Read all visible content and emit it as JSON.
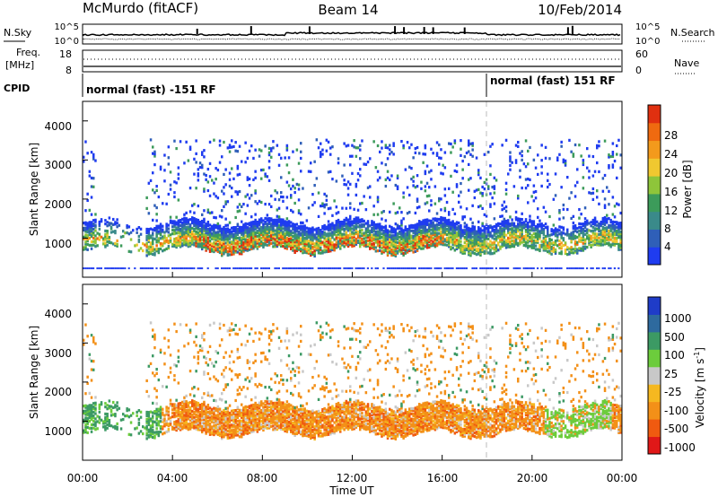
{
  "header": {
    "station": "McMurdo (fitACF)",
    "beam": "Beam 14",
    "date": "10/Feb/2014"
  },
  "panel_labels": {
    "nsky": "N.Sky",
    "nsearch": "N.Search",
    "freq_line1": "Freq.",
    "freq_line2": "[MHz]",
    "nave": "Nave",
    "cpid": "CPID"
  },
  "noise_axis": {
    "left_top": "10^5",
    "left_bottom": "10^0",
    "right_top": "10^5",
    "right_bottom": "10^0"
  },
  "freq_axis": {
    "left_top": "18",
    "left_bottom": "8",
    "right_top": "60",
    "right_bottom": "0"
  },
  "cpid": {
    "mode1": "normal (fast) -151 RF",
    "mode2": "normal (fast) 151 RF",
    "switch_hour": 18.0
  },
  "colors": {
    "power": [
      "#1f3cf0",
      "#2f5fb8",
      "#3a8a8a",
      "#3c9b5a",
      "#8ec53a",
      "#f0c830",
      "#f39a1c",
      "#ef6a10",
      "#e03010"
    ],
    "velocity": [
      "#e01818",
      "#f05a10",
      "#f39018",
      "#f5b820",
      "#c8c8c8",
      "#6ccc3c",
      "#3c9a64",
      "#2e6a9e",
      "#1f3cc8"
    ],
    "background_noise": "#1f3cf0"
  },
  "chart_data": [
    {
      "type": "heatmap",
      "name": "power",
      "xlabel": "Time UT",
      "ylabel": "Slant Range [km]",
      "x_ticks": [
        "00:00",
        "04:00",
        "08:00",
        "12:00",
        "16:00",
        "20:00",
        "00:00"
      ],
      "x_range_hours": [
        0,
        24
      ],
      "y_ticks": [
        "1000",
        "2000",
        "3000",
        "4000"
      ],
      "ylim": [
        0,
        4500
      ],
      "colorbar_label": "Power [dB]",
      "colorbar_ticks": [
        "4",
        "8",
        "12",
        "16",
        "20",
        "24",
        "28"
      ],
      "colorbar_range": [
        0,
        32
      ],
      "main_band_km": [
        700,
        1300
      ],
      "peak_power_db": 28
    },
    {
      "type": "heatmap",
      "name": "velocity",
      "xlabel": "Time UT",
      "ylabel": "Slant Range [km]",
      "x_ticks": [
        "00:00",
        "04:00",
        "08:00",
        "12:00",
        "16:00",
        "20:00",
        "00:00"
      ],
      "x_range_hours": [
        0,
        24
      ],
      "y_ticks": [
        "1000",
        "2000",
        "3000",
        "4000"
      ],
      "ylim": [
        0,
        4500
      ],
      "colorbar_label": "Velocity [m s",
      "colorbar_label_sup": "-1",
      "colorbar_label_end": "]",
      "colorbar_ticks": [
        "1000",
        "500",
        "100",
        "25",
        "-25",
        "-100",
        "-500",
        "-1000"
      ],
      "dominant_velocity_m_s": -100
    }
  ]
}
